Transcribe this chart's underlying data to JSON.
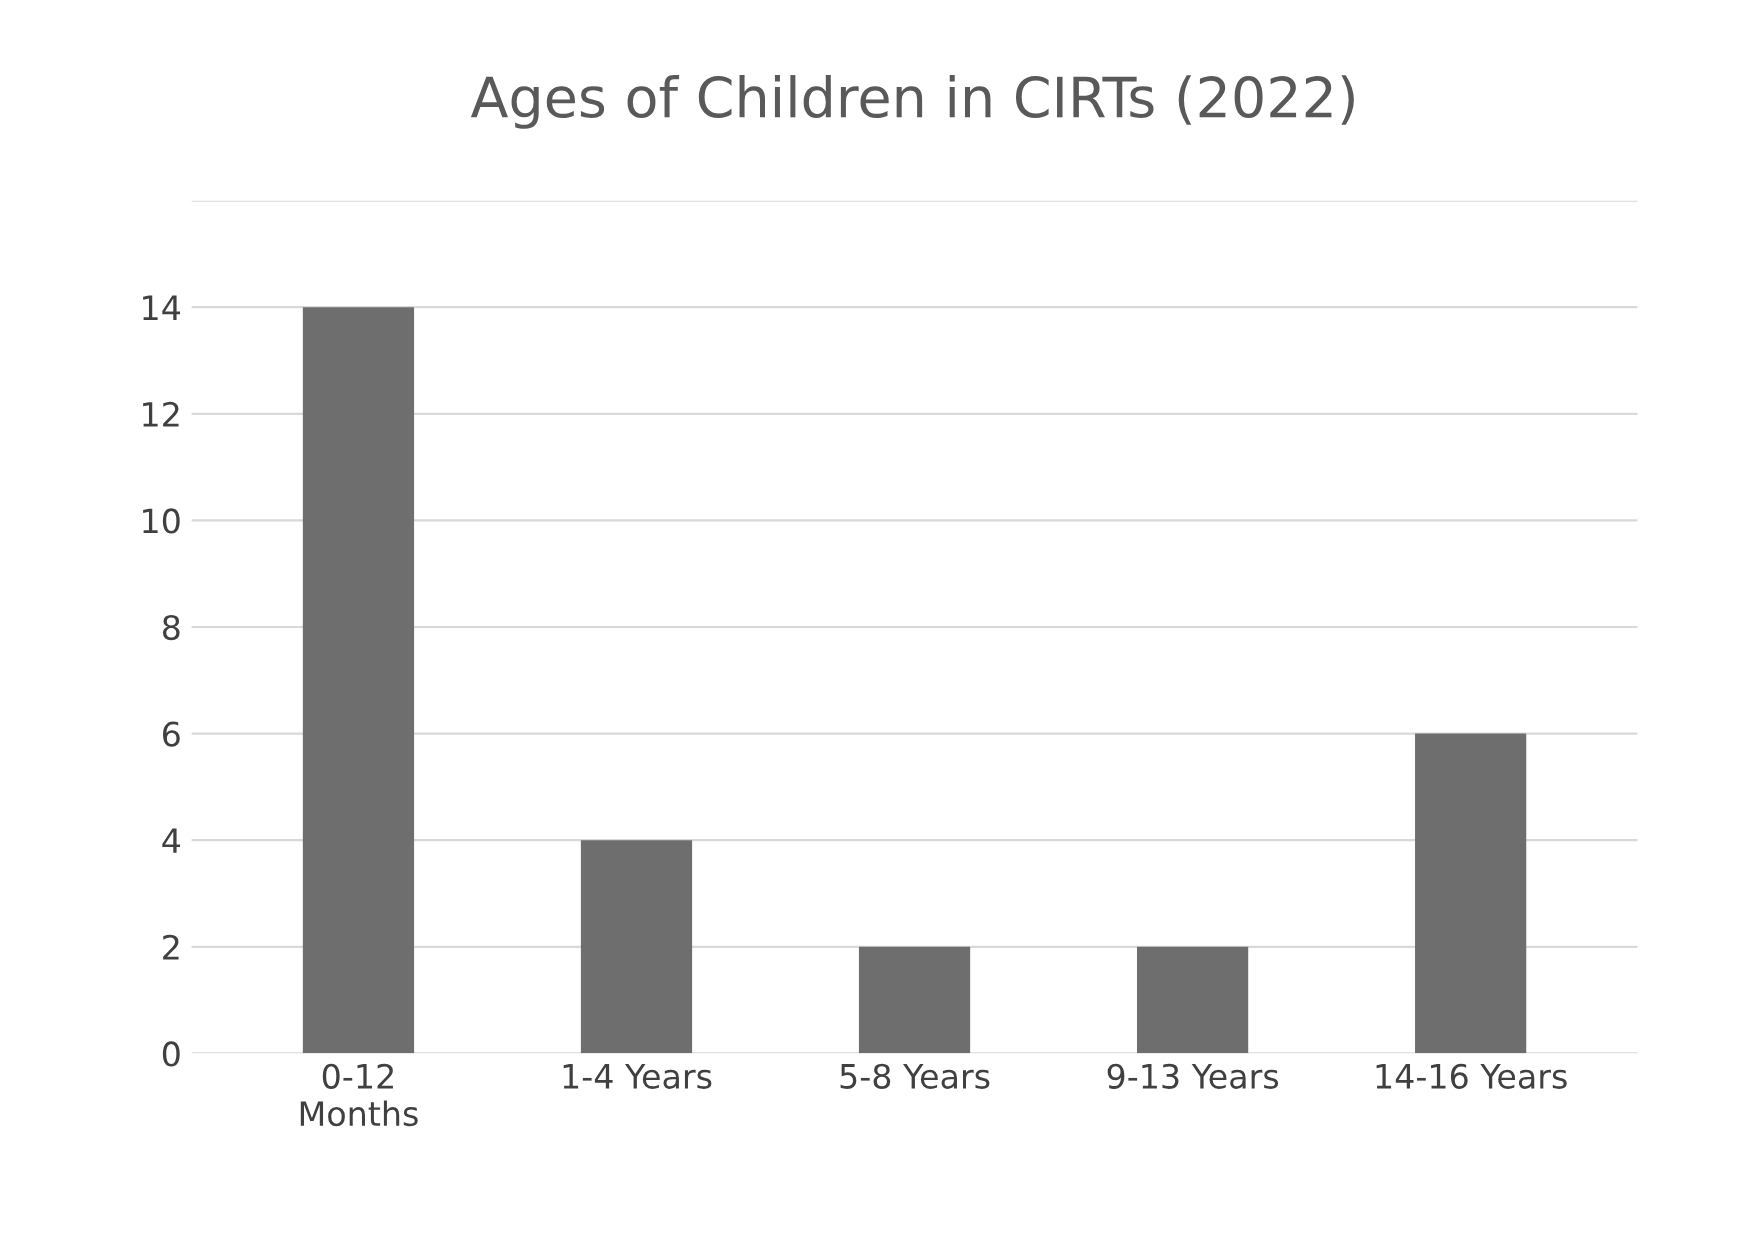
{
  "chart_data": {
    "type": "bar",
    "title": "Ages of Children in CIRTs (2022)",
    "categories": [
      "0-12\nMonths",
      "1-4 Years",
      "5-8 Years",
      "9-13 Years",
      "14-16 Years"
    ],
    "values": [
      14,
      4,
      2,
      2,
      6
    ],
    "color": "#6e6e6e",
    "ylim": [
      0,
      16
    ],
    "yticks": [
      0,
      2,
      4,
      6,
      8,
      10,
      12,
      14,
      {
        "value": 16,
        "label": null
      }
    ],
    "grid": "y",
    "legend": false
  }
}
